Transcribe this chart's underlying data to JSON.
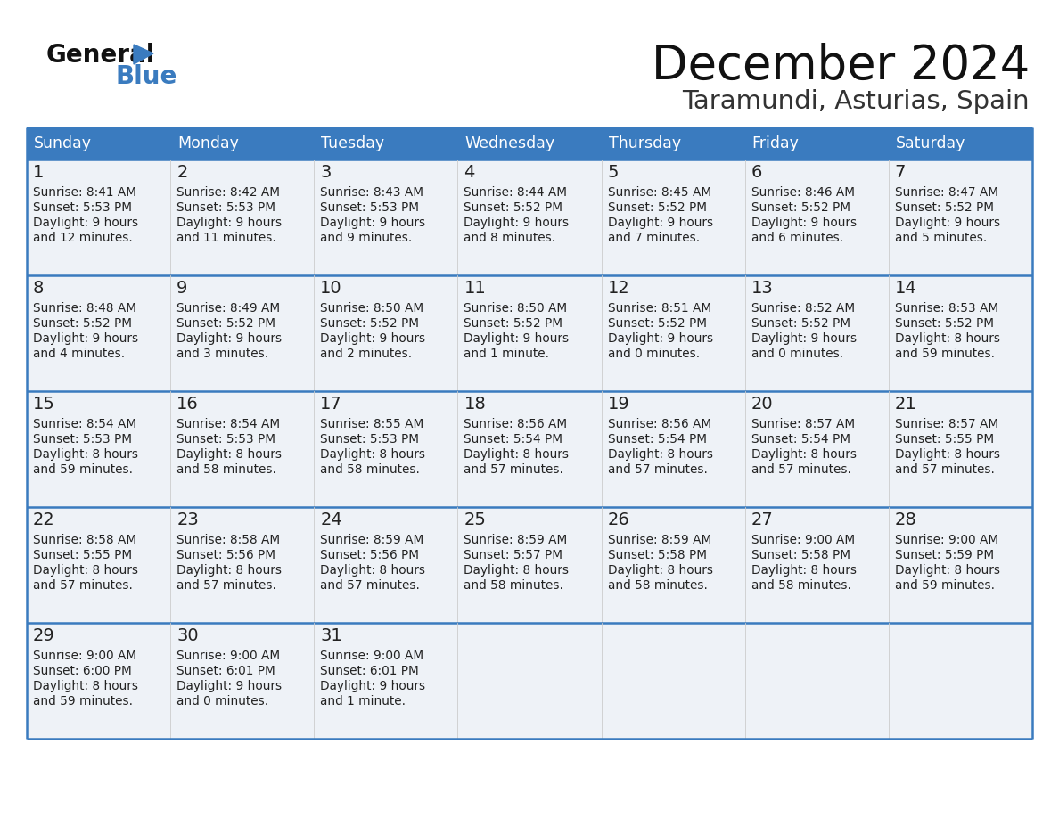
{
  "title": "December 2024",
  "subtitle": "Taramundi, Asturias, Spain",
  "days_of_week": [
    "Sunday",
    "Monday",
    "Tuesday",
    "Wednesday",
    "Thursday",
    "Friday",
    "Saturday"
  ],
  "header_bg": "#3a7bbf",
  "header_text": "#ffffff",
  "cell_bg_light": "#eef2f7",
  "cell_bg_white": "#ffffff",
  "border_color": "#3a7bbf",
  "row_border_color": "#5a9fd4",
  "text_color": "#222222",
  "weeks": [
    [
      {
        "day": "1",
        "sunrise": "8:41 AM",
        "sunset": "5:53 PM",
        "dl1": "Daylight: 9 hours",
        "dl2": "and 12 minutes."
      },
      {
        "day": "2",
        "sunrise": "8:42 AM",
        "sunset": "5:53 PM",
        "dl1": "Daylight: 9 hours",
        "dl2": "and 11 minutes."
      },
      {
        "day": "3",
        "sunrise": "8:43 AM",
        "sunset": "5:53 PM",
        "dl1": "Daylight: 9 hours",
        "dl2": "and 9 minutes."
      },
      {
        "day": "4",
        "sunrise": "8:44 AM",
        "sunset": "5:52 PM",
        "dl1": "Daylight: 9 hours",
        "dl2": "and 8 minutes."
      },
      {
        "day": "5",
        "sunrise": "8:45 AM",
        "sunset": "5:52 PM",
        "dl1": "Daylight: 9 hours",
        "dl2": "and 7 minutes."
      },
      {
        "day": "6",
        "sunrise": "8:46 AM",
        "sunset": "5:52 PM",
        "dl1": "Daylight: 9 hours",
        "dl2": "and 6 minutes."
      },
      {
        "day": "7",
        "sunrise": "8:47 AM",
        "sunset": "5:52 PM",
        "dl1": "Daylight: 9 hours",
        "dl2": "and 5 minutes."
      }
    ],
    [
      {
        "day": "8",
        "sunrise": "8:48 AM",
        "sunset": "5:52 PM",
        "dl1": "Daylight: 9 hours",
        "dl2": "and 4 minutes."
      },
      {
        "day": "9",
        "sunrise": "8:49 AM",
        "sunset": "5:52 PM",
        "dl1": "Daylight: 9 hours",
        "dl2": "and 3 minutes."
      },
      {
        "day": "10",
        "sunrise": "8:50 AM",
        "sunset": "5:52 PM",
        "dl1": "Daylight: 9 hours",
        "dl2": "and 2 minutes."
      },
      {
        "day": "11",
        "sunrise": "8:50 AM",
        "sunset": "5:52 PM",
        "dl1": "Daylight: 9 hours",
        "dl2": "and 1 minute."
      },
      {
        "day": "12",
        "sunrise": "8:51 AM",
        "sunset": "5:52 PM",
        "dl1": "Daylight: 9 hours",
        "dl2": "and 0 minutes."
      },
      {
        "day": "13",
        "sunrise": "8:52 AM",
        "sunset": "5:52 PM",
        "dl1": "Daylight: 9 hours",
        "dl2": "and 0 minutes."
      },
      {
        "day": "14",
        "sunrise": "8:53 AM",
        "sunset": "5:52 PM",
        "dl1": "Daylight: 8 hours",
        "dl2": "and 59 minutes."
      }
    ],
    [
      {
        "day": "15",
        "sunrise": "8:54 AM",
        "sunset": "5:53 PM",
        "dl1": "Daylight: 8 hours",
        "dl2": "and 59 minutes."
      },
      {
        "day": "16",
        "sunrise": "8:54 AM",
        "sunset": "5:53 PM",
        "dl1": "Daylight: 8 hours",
        "dl2": "and 58 minutes."
      },
      {
        "day": "17",
        "sunrise": "8:55 AM",
        "sunset": "5:53 PM",
        "dl1": "Daylight: 8 hours",
        "dl2": "and 58 minutes."
      },
      {
        "day": "18",
        "sunrise": "8:56 AM",
        "sunset": "5:54 PM",
        "dl1": "Daylight: 8 hours",
        "dl2": "and 57 minutes."
      },
      {
        "day": "19",
        "sunrise": "8:56 AM",
        "sunset": "5:54 PM",
        "dl1": "Daylight: 8 hours",
        "dl2": "and 57 minutes."
      },
      {
        "day": "20",
        "sunrise": "8:57 AM",
        "sunset": "5:54 PM",
        "dl1": "Daylight: 8 hours",
        "dl2": "and 57 minutes."
      },
      {
        "day": "21",
        "sunrise": "8:57 AM",
        "sunset": "5:55 PM",
        "dl1": "Daylight: 8 hours",
        "dl2": "and 57 minutes."
      }
    ],
    [
      {
        "day": "22",
        "sunrise": "8:58 AM",
        "sunset": "5:55 PM",
        "dl1": "Daylight: 8 hours",
        "dl2": "and 57 minutes."
      },
      {
        "day": "23",
        "sunrise": "8:58 AM",
        "sunset": "5:56 PM",
        "dl1": "Daylight: 8 hours",
        "dl2": "and 57 minutes."
      },
      {
        "day": "24",
        "sunrise": "8:59 AM",
        "sunset": "5:56 PM",
        "dl1": "Daylight: 8 hours",
        "dl2": "and 57 minutes."
      },
      {
        "day": "25",
        "sunrise": "8:59 AM",
        "sunset": "5:57 PM",
        "dl1": "Daylight: 8 hours",
        "dl2": "and 58 minutes."
      },
      {
        "day": "26",
        "sunrise": "8:59 AM",
        "sunset": "5:58 PM",
        "dl1": "Daylight: 8 hours",
        "dl2": "and 58 minutes."
      },
      {
        "day": "27",
        "sunrise": "9:00 AM",
        "sunset": "5:58 PM",
        "dl1": "Daylight: 8 hours",
        "dl2": "and 58 minutes."
      },
      {
        "day": "28",
        "sunrise": "9:00 AM",
        "sunset": "5:59 PM",
        "dl1": "Daylight: 8 hours",
        "dl2": "and 59 minutes."
      }
    ],
    [
      {
        "day": "29",
        "sunrise": "9:00 AM",
        "sunset": "6:00 PM",
        "dl1": "Daylight: 8 hours",
        "dl2": "and 59 minutes."
      },
      {
        "day": "30",
        "sunrise": "9:00 AM",
        "sunset": "6:01 PM",
        "dl1": "Daylight: 9 hours",
        "dl2": "and 0 minutes."
      },
      {
        "day": "31",
        "sunrise": "9:00 AM",
        "sunset": "6:01 PM",
        "dl1": "Daylight: 9 hours",
        "dl2": "and 1 minute."
      },
      null,
      null,
      null,
      null
    ]
  ]
}
